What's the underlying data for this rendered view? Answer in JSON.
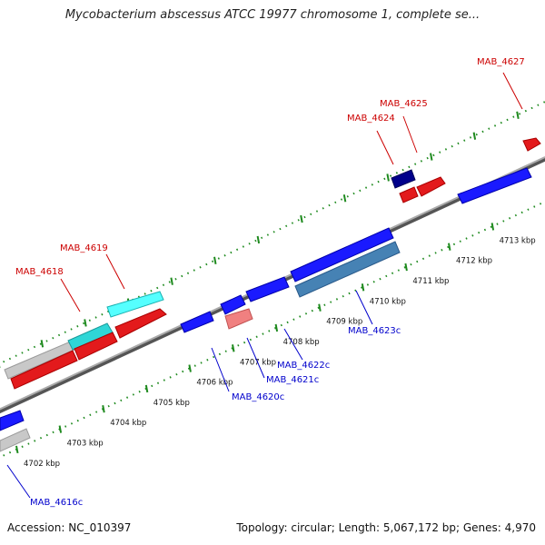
{
  "title": "Mycobacterium abscessus ATCC 19977 chromosome 1, complete se...",
  "footer": {
    "accession": "Accession: NC_010397",
    "stats": "Topology: circular; Length: 5,067,172 bp; Genes: 4,970"
  },
  "colors": {
    "forward_strand": "#e31a1c",
    "reverse_strand": "#1a1aff",
    "backbone": "#808080",
    "tick": "#1e8a1e",
    "forward_label": "#cc0000",
    "reverse_label": "#0000cc"
  },
  "scale": {
    "unit": "kbp",
    "labels": [
      "4702 kbp",
      "4703 kbp",
      "4704 kbp",
      "4705 kbp",
      "4706 kbp",
      "4707 kbp",
      "4708 kbp",
      "4709 kbp",
      "4710 kbp",
      "4711 kbp",
      "4712 kbp",
      "4713 kbp"
    ]
  },
  "genes": [
    {
      "label": "MAB_4616c",
      "strand": "reverse"
    },
    {
      "label": "MAB_4618",
      "strand": "forward"
    },
    {
      "label": "MAB_4619",
      "strand": "forward"
    },
    {
      "label": "MAB_4620c",
      "strand": "reverse"
    },
    {
      "label": "MAB_4621c",
      "strand": "reverse"
    },
    {
      "label": "MAB_4622c",
      "strand": "reverse"
    },
    {
      "label": "MAB_4623c",
      "strand": "reverse"
    },
    {
      "label": "MAB_4624",
      "strand": "forward"
    },
    {
      "label": "MAB_4625",
      "strand": "forward"
    },
    {
      "label": "MAB_4627",
      "strand": "forward"
    }
  ]
}
